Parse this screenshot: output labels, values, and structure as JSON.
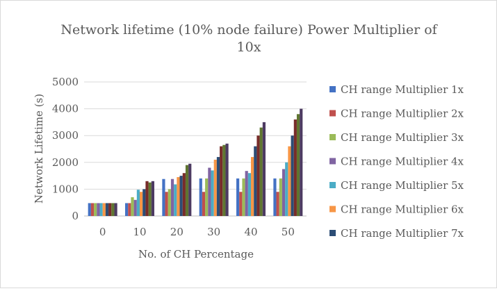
{
  "chart_data": {
    "type": "bar",
    "title": "Network lifetime (10% node failure) Power Multiplier of 10x",
    "title_lines": [
      "Network lifetime (10% node failure) Power Multiplier of",
      "10x"
    ],
    "xlabel": "No. of CH Percentage",
    "ylabel": "Network Lifetime (s)",
    "ylim": [
      0,
      5000
    ],
    "yticks": [
      0,
      1000,
      2000,
      3000,
      4000,
      5000
    ],
    "grid": true,
    "legend_position": "right",
    "categories": [
      "0",
      "10",
      "20",
      "30",
      "40",
      "50"
    ],
    "series": [
      {
        "name": "CH range Multiplier 1x",
        "color": "#4472c4",
        "values": [
          480,
          480,
          1380,
          1400,
          1400,
          1400
        ]
      },
      {
        "name": "CH range Multiplier 2x",
        "color": "#c0504d",
        "values": [
          480,
          480,
          900,
          900,
          900,
          900
        ]
      },
      {
        "name": "CH range Multiplier 3x",
        "color": "#9bbb59",
        "values": [
          480,
          700,
          1000,
          1400,
          1400,
          1400
        ]
      },
      {
        "name": "CH range Multiplier 4x",
        "color": "#8064a2",
        "values": [
          480,
          600,
          1380,
          1800,
          1680,
          1750
        ]
      },
      {
        "name": "CH range Multiplier 5x",
        "color": "#4bacc6",
        "values": [
          480,
          980,
          1180,
          1700,
          1600,
          2000
        ]
      },
      {
        "name": "CH range Multiplier 6x",
        "color": "#f79646",
        "values": [
          480,
          900,
          1450,
          2100,
          2200,
          2600
        ]
      },
      {
        "name": "CH range Multiplier 7x",
        "color": "#2c4d75",
        "values": [
          480,
          1000,
          1500,
          2200,
          2600,
          3000
        ]
      },
      {
        "name": "",
        "color": "#772c2a",
        "values": [
          480,
          1300,
          1600,
          2600,
          3000,
          3600
        ]
      },
      {
        "name": "",
        "color": "#5f7530",
        "values": [
          480,
          1250,
          1900,
          2650,
          3300,
          3800
        ]
      },
      {
        "name": "",
        "color": "#4d3b62",
        "values": [
          480,
          1300,
          1950,
          2700,
          3500,
          4000
        ]
      }
    ]
  }
}
